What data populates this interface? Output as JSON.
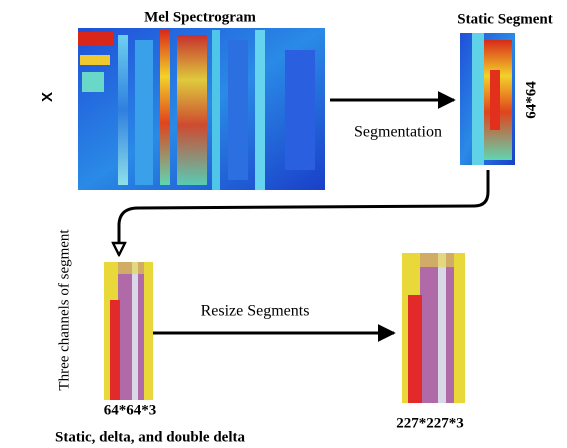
{
  "input": {
    "label": "Mel Spectrogram",
    "side_label": "X"
  },
  "segment": {
    "label": "Static Segment",
    "size": "64*64"
  },
  "edges": [
    {
      "label": "Segmentation"
    },
    {
      "label": "Resize Segments"
    }
  ],
  "channels": {
    "label": "Three channels of segment",
    "size": "64*64*3",
    "caption": "Static, delta, and double delta"
  },
  "resized": {
    "size": "227*227*3"
  }
}
